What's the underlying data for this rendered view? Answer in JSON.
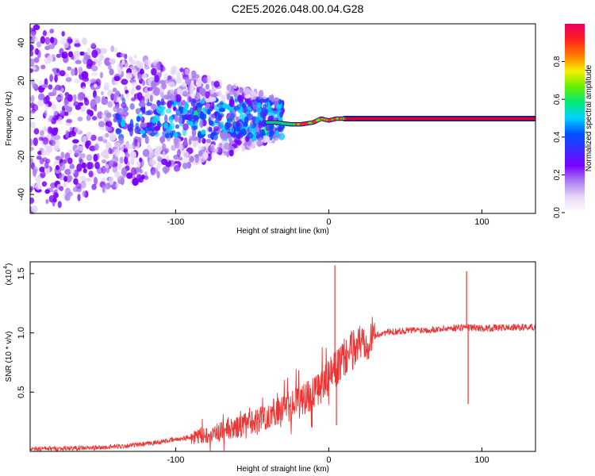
{
  "title": "C2E5.2026.048.00.04.G28",
  "chart_data": [
    {
      "type": "heatmap",
      "name": "spectrogram",
      "xlabel": "Height of straight line (km)",
      "ylabel": "Frequency (Hz)",
      "xlim": [
        -195,
        135
      ],
      "ylim": [
        -50,
        50
      ],
      "xticks": [
        {
          "value": -100,
          "label": "-100"
        },
        {
          "value": 0,
          "label": "0"
        },
        {
          "value": 100,
          "label": "100"
        }
      ],
      "yticks": [
        {
          "value": -40,
          "label": "-40"
        },
        {
          "value": -20,
          "label": "-20"
        },
        {
          "value": 0,
          "label": "0"
        },
        {
          "value": 20,
          "label": "20"
        },
        {
          "value": 40,
          "label": "40"
        }
      ],
      "trace": [
        {
          "x": -35,
          "freq": -2
        },
        {
          "x": -25,
          "freq": -3
        },
        {
          "x": -18,
          "freq": -3
        },
        {
          "x": -10,
          "freq": -2
        },
        {
          "x": -5,
          "freq": 0
        },
        {
          "x": 0,
          "freq": -1
        },
        {
          "x": 5,
          "freq": 0
        },
        {
          "x": 10,
          "freq": 0
        },
        {
          "x": 20,
          "freq": 0
        },
        {
          "x": 60,
          "freq": 0
        },
        {
          "x": 88,
          "freq": 0
        },
        {
          "x": 135,
          "freq": 0
        }
      ],
      "colorbar": {
        "label": "Normalized spectral amplitude",
        "range": [
          0,
          1
        ],
        "ticks": [
          {
            "value": 0.0,
            "label": "0.0"
          },
          {
            "value": 0.2,
            "label": "0.2"
          },
          {
            "value": 0.4,
            "label": "0.4"
          },
          {
            "value": 0.6,
            "label": "0.6"
          },
          {
            "value": 0.8,
            "label": "0.8"
          }
        ],
        "colors": [
          "#ffffff",
          "#e6d7f7",
          "#a97cf0",
          "#7a00ff",
          "#3b2bff",
          "#0050ff",
          "#00d0ff",
          "#00e878",
          "#66ee00",
          "#f5f000",
          "#ff7a00",
          "#ff1f1f",
          "#e8005f"
        ]
      }
    },
    {
      "type": "line",
      "name": "snr",
      "xlabel": "Height of straight line (km)",
      "ylabel": "SNR (10 * v/v)",
      "multiplier_label": "(x10",
      "multiplier_exponent": "4",
      "multiplier_close": ")",
      "xlim": [
        -195,
        135
      ],
      "ylim": [
        0,
        1.6
      ],
      "xticks": [
        {
          "value": -100,
          "label": "-100"
        },
        {
          "value": 0,
          "label": "0"
        },
        {
          "value": 100,
          "label": "100"
        }
      ],
      "yticks": [
        {
          "value": 0.5,
          "label": "0.5"
        },
        {
          "value": 1.0,
          "label": "1.0"
        },
        {
          "value": 1.5,
          "label": "1.5"
        }
      ],
      "color": "#ee3333",
      "envelope": [
        {
          "x": -195,
          "y": 0.02
        },
        {
          "x": -150,
          "y": 0.03
        },
        {
          "x": -120,
          "y": 0.06
        },
        {
          "x": -100,
          "y": 0.1
        },
        {
          "x": -80,
          "y": 0.14
        },
        {
          "x": -60,
          "y": 0.2
        },
        {
          "x": -40,
          "y": 0.3
        },
        {
          "x": -25,
          "y": 0.38
        },
        {
          "x": -10,
          "y": 0.5
        },
        {
          "x": 0,
          "y": 0.62
        },
        {
          "x": 5,
          "y": 0.7
        },
        {
          "x": 10,
          "y": 0.78
        },
        {
          "x": 20,
          "y": 0.92
        },
        {
          "x": 35,
          "y": 1.0
        },
        {
          "x": 50,
          "y": 1.02
        },
        {
          "x": 70,
          "y": 1.03
        },
        {
          "x": 88,
          "y": 1.05
        },
        {
          "x": 100,
          "y": 1.04
        },
        {
          "x": 135,
          "y": 1.05
        }
      ],
      "spikes": [
        {
          "x": 4,
          "y": 1.57
        },
        {
          "x": 5,
          "y": 0.22
        },
        {
          "x": 90,
          "y": 1.52
        },
        {
          "x": 91,
          "y": 0.4
        }
      ]
    }
  ]
}
